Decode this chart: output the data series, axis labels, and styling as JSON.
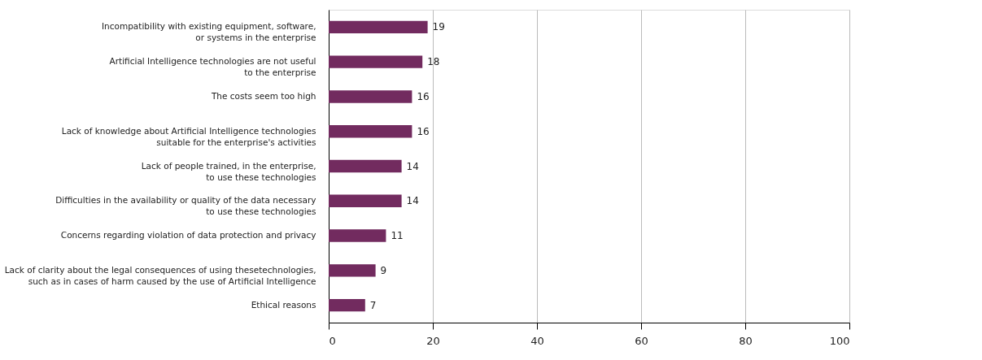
{
  "chart_data": {
    "type": "bar",
    "orientation": "horizontal",
    "categories": [
      "Incompatibility with existing equipment, software,\nor systems in the enterprise",
      "Artificial Intelligence technologies are not useful\nto the enterprise",
      "The costs seem too high",
      "Lack of knowledge about Artificial Intelligence technologies\nsuitable for the enterprise's activities",
      "Lack of people trained, in the enterprise,\nto use these technologies",
      "Difficulties in the availability or quality of the data necessary\nto use these technologies",
      "Concerns regarding violation of data protection and privacy",
      "Lack of clarity about the legal consequences of using thesetechnologies,\nsuch as in cases of harm caused by the use of Artificial Intelligence",
      "Ethical reasons"
    ],
    "values": [
      19,
      18,
      16,
      16,
      14,
      14,
      11,
      9,
      7
    ],
    "color": "#722b5f",
    "xlim": [
      0,
      100
    ],
    "xticks": [
      0,
      20,
      40,
      60,
      80,
      100
    ],
    "grid": "x",
    "data_labels": true
  }
}
